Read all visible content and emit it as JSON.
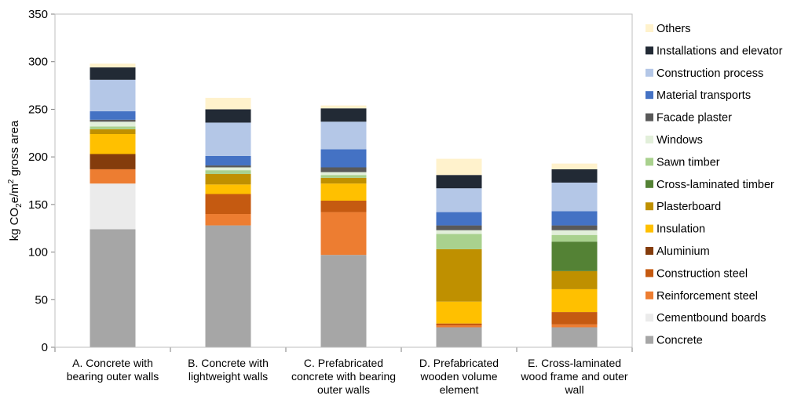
{
  "chart_data": {
    "type": "bar",
    "stacked": true,
    "ylabel_parts": [
      "kg CO",
      "2",
      "e/m",
      "2",
      " gross area"
    ],
    "ylim": [
      0,
      350
    ],
    "yticks": [
      "0",
      "50",
      "100",
      "150",
      "200",
      "250",
      "300",
      "350"
    ],
    "grid": false,
    "legend_position": "right",
    "categories": [
      [
        "A. Concrete with",
        "bearing outer walls"
      ],
      [
        "B. Concrete with",
        "lightweight walls"
      ],
      [
        "C. Prefabricated",
        "concrete with bearing",
        "outer walls"
      ],
      [
        "D. Prefabricated",
        "wooden volume",
        "element"
      ],
      [
        "E. Cross-laminated",
        "wood frame and outer",
        "wall"
      ]
    ],
    "series": [
      {
        "name": "Concrete",
        "color": "#a6a6a6",
        "values": [
          124,
          128,
          97,
          21,
          21
        ]
      },
      {
        "name": "Cementbound boards",
        "color": "#ebebeb",
        "values": [
          48,
          0,
          0,
          0,
          0
        ]
      },
      {
        "name": "Reinforcement steel",
        "color": "#ed7d31",
        "values": [
          15,
          12,
          45,
          2,
          3
        ]
      },
      {
        "name": "Construction steel",
        "color": "#c55a11",
        "values": [
          0,
          21,
          12,
          2,
          13
        ]
      },
      {
        "name": "Aluminium",
        "color": "#843c0c",
        "values": [
          16,
          0,
          0,
          0,
          0
        ]
      },
      {
        "name": "Insulation",
        "color": "#ffc000",
        "values": [
          21,
          10,
          18,
          23,
          24
        ]
      },
      {
        "name": "Plasterboard",
        "color": "#bf9000",
        "values": [
          5,
          11,
          6,
          55,
          19
        ]
      },
      {
        "name": "Cross-laminated timber",
        "color": "#548235",
        "values": [
          0,
          0,
          0,
          0,
          31
        ]
      },
      {
        "name": "Sawn timber",
        "color": "#a9d18e",
        "values": [
          3,
          4,
          3,
          16,
          7
        ]
      },
      {
        "name": "Windows",
        "color": "#e2efda",
        "values": [
          5,
          3,
          3,
          4,
          5
        ]
      },
      {
        "name": "Facade plaster",
        "color": "#595959",
        "values": [
          2,
          2,
          5,
          5,
          5
        ]
      },
      {
        "name": "Material transports",
        "color": "#4472c4",
        "values": [
          9,
          10,
          19,
          14,
          15
        ]
      },
      {
        "name": "Construction process",
        "color": "#b4c7e7",
        "values": [
          33,
          35,
          29,
          25,
          30
        ]
      },
      {
        "name": "Installations and elevator",
        "color": "#222a35",
        "values": [
          13,
          14,
          14,
          14,
          14
        ]
      },
      {
        "name": "Others",
        "color": "#fff2cc",
        "values": [
          4,
          12,
          3,
          17,
          6
        ]
      }
    ]
  }
}
